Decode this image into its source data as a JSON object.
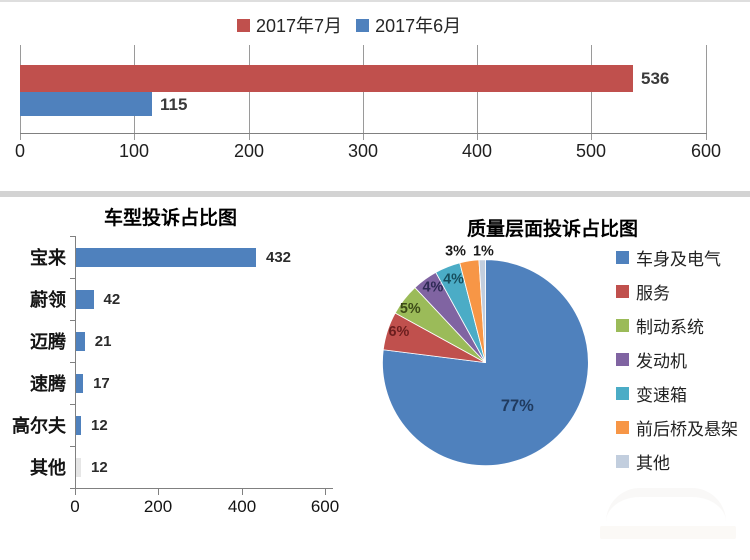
{
  "chart_data": [
    {
      "type": "bar",
      "orientation": "horizontal",
      "legend": [
        {
          "label": "2017年7月",
          "color": "#c0504d"
        },
        {
          "label": "2017年6月",
          "color": "#4f81bd"
        }
      ],
      "series": [
        {
          "name": "2017年7月",
          "value": 536,
          "value_label": "536",
          "color": "#c0504d"
        },
        {
          "name": "2017年6月",
          "value": 115,
          "value_label": "115",
          "color": "#4f81bd"
        }
      ],
      "xlim": [
        0,
        600
      ],
      "x_ticks": [
        "0",
        "100",
        "200",
        "300",
        "400",
        "500",
        "600"
      ],
      "grid": true
    },
    {
      "type": "bar",
      "orientation": "horizontal",
      "title": "车型投诉占比图",
      "categories": [
        "宝来",
        "蔚领",
        "迈腾",
        "速腾",
        "高尔夫",
        "其他"
      ],
      "values": [
        432,
        42,
        21,
        17,
        12,
        12
      ],
      "value_labels": [
        "432",
        "42",
        "21",
        "17",
        "12",
        "12"
      ],
      "bar_colors": [
        "#4f81bd",
        "#4f81bd",
        "#4f81bd",
        "#4f81bd",
        "#4f81bd",
        "#e6e6e6"
      ],
      "xlim": [
        0,
        600
      ],
      "x_ticks": [
        "0",
        "200",
        "400",
        "600"
      ],
      "grid": false
    },
    {
      "type": "pie",
      "title": "质量层面投诉占比图",
      "start_angle_deg": 0,
      "direction": "clockwise",
      "legend_position": "right",
      "slices": [
        {
          "label": "车身及电气",
          "pct": 77,
          "pct_label": "77%",
          "color": "#4f81bd"
        },
        {
          "label": "服务",
          "pct": 6,
          "pct_label": "6%",
          "color": "#c0504d"
        },
        {
          "label": "制动系统",
          "pct": 5,
          "pct_label": "5%",
          "color": "#9bbb59"
        },
        {
          "label": "发动机",
          "pct": 4,
          "pct_label": "4%",
          "color": "#8064a2"
        },
        {
          "label": "变速箱",
          "pct": 4,
          "pct_label": "4%",
          "color": "#4bacc6"
        },
        {
          "label": "前后桥及悬架",
          "pct": 3,
          "pct_label": "3%",
          "color": "#f79646"
        },
        {
          "label": "其他",
          "pct": 1,
          "pct_label": "1%",
          "color": "#c2cede"
        }
      ]
    }
  ]
}
